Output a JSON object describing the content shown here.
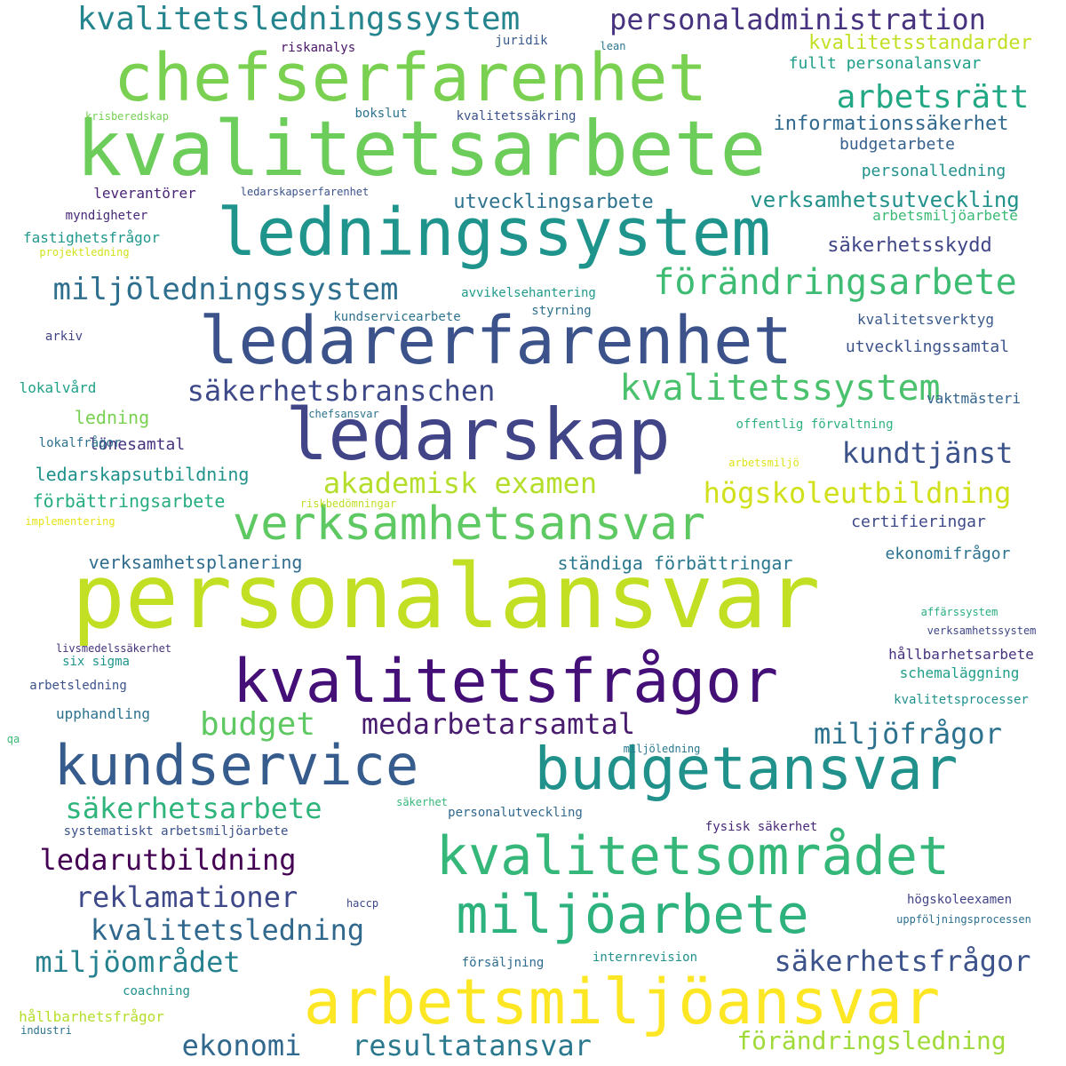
{
  "words": [
    {
      "text": "personalansvar",
      "color": "#c2df23"
    },
    {
      "text": "kvalitetsarbete",
      "color": "#6ccd5a"
    },
    {
      "text": "chefserfarenhet",
      "color": "#7ad151"
    },
    {
      "text": "ledningssystem",
      "color": "#1f948c"
    },
    {
      "text": "ledarerfarenhet",
      "color": "#3b528b"
    },
    {
      "text": "ledarskap",
      "color": "#414487"
    },
    {
      "text": "kvalitetsfrågor",
      "color": "#440f76"
    },
    {
      "text": "budgetansvar",
      "color": "#21918c"
    },
    {
      "text": "kundservice",
      "color": "#365c8d"
    },
    {
      "text": "arbetsmiljöansvar",
      "color": "#fde725"
    },
    {
      "text": "kvalitetsområdet",
      "color": "#35b779"
    },
    {
      "text": "miljöarbete",
      "color": "#2db27d"
    },
    {
      "text": "verksamhetsansvar",
      "color": "#5ec962"
    },
    {
      "text": "kvalitetssystem",
      "color": "#4ac16d"
    },
    {
      "text": "kvalitetsledningssystem",
      "color": "#25858e"
    },
    {
      "text": "personaladministration",
      "color": "#46327e"
    },
    {
      "text": "förändringsarbete",
      "color": "#3fbc73"
    },
    {
      "text": "miljöledningssystem",
      "color": "#2e6e8e"
    },
    {
      "text": "arbetsrätt",
      "color": "#22a884"
    },
    {
      "text": "säkerhetsbranschen",
      "color": "#3e4989"
    },
    {
      "text": "akademisk examen",
      "color": "#b5de2b"
    },
    {
      "text": "högskoleutbildning",
      "color": "#d0e11c"
    },
    {
      "text": "kundtjänst",
      "color": "#3b528b"
    },
    {
      "text": "budget",
      "color": "#5ec962"
    },
    {
      "text": "medarbetarsamtal",
      "color": "#481c6e"
    },
    {
      "text": "miljöfrågor",
      "color": "#2c728e"
    },
    {
      "text": "säkerhetsarbete",
      "color": "#2fb47c"
    },
    {
      "text": "ledarutbildning",
      "color": "#440154"
    },
    {
      "text": "reklamationer",
      "color": "#3e4989"
    },
    {
      "text": "kvalitetsledning",
      "color": "#31688e"
    },
    {
      "text": "miljöområdet",
      "color": "#26828e"
    },
    {
      "text": "säkerhetsfrågor",
      "color": "#3b528b"
    },
    {
      "text": "ekonomi",
      "color": "#31688e"
    },
    {
      "text": "resultatansvar",
      "color": "#2a788e"
    },
    {
      "text": "förändringsledning",
      "color": "#a0da39"
    },
    {
      "text": "verksamhetsutveckling",
      "color": "#21918c"
    },
    {
      "text": "utvecklingsarbete",
      "color": "#2c728e"
    },
    {
      "text": "informationssäkerhet",
      "color": "#31688e"
    },
    {
      "text": "kvalitetsstandarder",
      "color": "#c2df23"
    },
    {
      "text": "fullt personalansvar",
      "color": "#1f9e89"
    },
    {
      "text": "budgetarbete",
      "color": "#355f8d"
    },
    {
      "text": "personalledning",
      "color": "#21918c"
    },
    {
      "text": "arbetsmiljöarbete",
      "color": "#3aba76"
    },
    {
      "text": "säkerhetsskydd",
      "color": "#404688"
    },
    {
      "text": "kvalitetsverktyg",
      "color": "#38598c"
    },
    {
      "text": "utvecklingssamtal",
      "color": "#3b528b"
    },
    {
      "text": "vaktmästeri",
      "color": "#33638d"
    },
    {
      "text": "offentlig förvaltning",
      "color": "#2db27d"
    },
    {
      "text": "certifieringar",
      "color": "#3e4989"
    },
    {
      "text": "ekonomifrågor",
      "color": "#2c728e"
    },
    {
      "text": "ständiga förbättringar",
      "color": "#2a788e"
    },
    {
      "text": "verksamhetsplanering",
      "color": "#2f6c8e"
    },
    {
      "text": "ledarskapsutbildning",
      "color": "#20928c"
    },
    {
      "text": "förbättringsarbete",
      "color": "#26ad81"
    },
    {
      "text": "lönesamtal",
      "color": "#46327e"
    },
    {
      "text": "ledning",
      "color": "#7ad151"
    },
    {
      "text": "lokalvård",
      "color": "#1fa188"
    },
    {
      "text": "lokalfrågor",
      "color": "#2c728e"
    },
    {
      "text": "chefsansvar",
      "color": "#2c728e"
    },
    {
      "text": "arbetsmiljö",
      "color": "#dde318"
    },
    {
      "text": "riskbedömningar",
      "color": "#bddf26"
    },
    {
      "text": "implementering",
      "color": "#e5e419"
    },
    {
      "text": "arkiv",
      "color": "#414487"
    },
    {
      "text": "kundservicearbete",
      "color": "#2c728e"
    },
    {
      "text": "styrning",
      "color": "#2d708e"
    },
    {
      "text": "avvikelsehantering",
      "color": "#1f9a8a"
    },
    {
      "text": "projektledning",
      "color": "#d2e21b"
    },
    {
      "text": "fastighetsfrågor",
      "color": "#1f988b"
    },
    {
      "text": "myndigheter",
      "color": "#482878"
    },
    {
      "text": "leverantörer",
      "color": "#482475"
    },
    {
      "text": "ledarskapserfarenhet",
      "color": "#3b528b"
    },
    {
      "text": "krisberedskap",
      "color": "#75d054"
    },
    {
      "text": "bokslut",
      "color": "#2c728e"
    },
    {
      "text": "kvalitetssäkring",
      "color": "#3b528b"
    },
    {
      "text": "riskanalys",
      "color": "#481467"
    },
    {
      "text": "juridik",
      "color": "#38598c"
    },
    {
      "text": "lean",
      "color": "#2a788e"
    },
    {
      "text": "affärssystem",
      "color": "#27ad81"
    },
    {
      "text": "verksamhetssystem",
      "color": "#3f4788"
    },
    {
      "text": "livsmedelssäkerhet",
      "color": "#46327e"
    },
    {
      "text": "six sigma",
      "color": "#1f968b"
    },
    {
      "text": "arbetsledning",
      "color": "#3b528b"
    },
    {
      "text": "hållbarhetsarbete",
      "color": "#46327e"
    },
    {
      "text": "schemaläggning",
      "color": "#1f9e89"
    },
    {
      "text": "kvalitetsprocesser",
      "color": "#21918c"
    },
    {
      "text": "upphandling",
      "color": "#2c728e"
    },
    {
      "text": "qa",
      "color": "#3aba76"
    },
    {
      "text": "miljöledning",
      "color": "#2a788e"
    },
    {
      "text": "säkerhet",
      "color": "#35b779"
    },
    {
      "text": "personalutveckling",
      "color": "#31688e"
    },
    {
      "text": "fysisk säkerhet",
      "color": "#482878"
    },
    {
      "text": "systematiskt arbetsmiljöarbete",
      "color": "#3b528b"
    },
    {
      "text": "haccp",
      "color": "#3e4989"
    },
    {
      "text": "högskoleexamen",
      "color": "#414487"
    },
    {
      "text": "uppföljningsprocessen",
      "color": "#2d708e"
    },
    {
      "text": "internrevision",
      "color": "#21918c"
    },
    {
      "text": "försäljning",
      "color": "#2f6c8e"
    },
    {
      "text": "coachning",
      "color": "#21918c"
    },
    {
      "text": "hållbarhetsfrågor",
      "color": "#b5de2b"
    },
    {
      "text": "industri",
      "color": "#2c728e"
    }
  ]
}
